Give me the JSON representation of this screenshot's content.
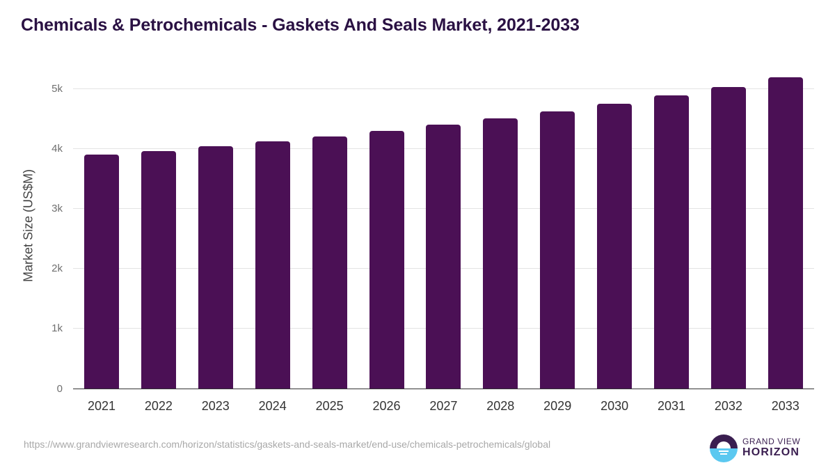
{
  "header": {
    "title": "Chemicals & Petrochemicals - Gaskets And Seals Market, 2021-2033"
  },
  "axes": {
    "ylabel": "Market Size (US$M)",
    "yticks": [
      "0",
      "1k",
      "2k",
      "3k",
      "4k",
      "5k"
    ]
  },
  "footer": {
    "source_url": "https://www.grandviewresearch.com/horizon/statistics/gaskets-and-seals-market/end-use/chemicals-petrochemicals/global",
    "logo_line1": "GRAND VIEW",
    "logo_line2": "HORIZON"
  },
  "colors": {
    "bar": "#4b1055",
    "title": "#2a1143",
    "logo_dark": "#3a1e50",
    "logo_light": "#5bc8f0"
  },
  "chart_data": {
    "type": "bar",
    "title": "Chemicals & Petrochemicals - Gaskets And Seals Market, 2021-2033",
    "xlabel": "",
    "ylabel": "Market Size (US$M)",
    "categories": [
      "2021",
      "2022",
      "2023",
      "2024",
      "2025",
      "2026",
      "2027",
      "2028",
      "2029",
      "2030",
      "2031",
      "2032",
      "2033"
    ],
    "values": [
      3906,
      3965,
      4047,
      4128,
      4210,
      4302,
      4407,
      4512,
      4628,
      4756,
      4895,
      5035,
      5198
    ],
    "ylim": [
      0,
      5400
    ],
    "yticks": [
      0,
      1000,
      2000,
      3000,
      4000,
      5000
    ],
    "grid": true,
    "legend": "none"
  }
}
